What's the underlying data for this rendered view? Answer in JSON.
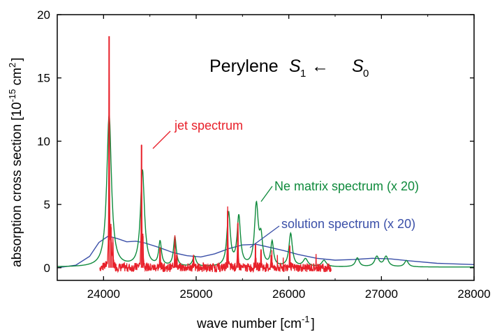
{
  "chart_data": {
    "type": "line",
    "title_main": "Perylene",
    "title_state_a": "S",
    "title_state_a_sub": "1",
    "title_arrow": "←",
    "title_state_b": "S",
    "title_state_b_sub": "0",
    "xlabel": "wave number [cm",
    "xlabel_sup": "-1",
    "xlabel_end": "]",
    "ylabel": "absorption cross section [10",
    "ylabel_sup": "-15",
    "ylabel_mid": " cm",
    "ylabel_sup2": "2",
    "ylabel_end": "]",
    "xlim": [
      23500,
      28000
    ],
    "ylim": [
      -1,
      20
    ],
    "xticks": [
      24000,
      25000,
      26000,
      27000,
      28000
    ],
    "yticks": [
      0,
      5,
      10,
      15,
      20
    ],
    "grid": false,
    "series": [
      {
        "name": "jet spectrum",
        "color": "#e8202a",
        "noise_range": [
          23960,
          26460
        ],
        "peaks": [
          {
            "x": 24060,
            "y": 18.3
          },
          {
            "x": 24080,
            "y": 3.2
          },
          {
            "x": 24100,
            "y": 2.0
          },
          {
            "x": 24410,
            "y": 9.7
          },
          {
            "x": 24425,
            "y": 2.5
          },
          {
            "x": 24610,
            "y": 1.6
          },
          {
            "x": 24770,
            "y": 2.4
          },
          {
            "x": 24790,
            "y": 1.0
          },
          {
            "x": 24970,
            "y": 0.9
          },
          {
            "x": 25340,
            "y": 4.5
          },
          {
            "x": 25450,
            "y": 3.5
          },
          {
            "x": 25640,
            "y": 1.8
          },
          {
            "x": 25700,
            "y": 1.4
          },
          {
            "x": 25810,
            "y": 1.0
          },
          {
            "x": 26010,
            "y": 1.7
          }
        ]
      },
      {
        "name": "Ne matrix spectrum (x 20)",
        "color": "#0f8a3c",
        "baseline": 0.05,
        "peaks": [
          {
            "x": 24060,
            "y": 12.0,
            "w": 30
          },
          {
            "x": 24420,
            "y": 7.6,
            "w": 26
          },
          {
            "x": 24610,
            "y": 1.9,
            "w": 18
          },
          {
            "x": 24770,
            "y": 2.3,
            "w": 18
          },
          {
            "x": 24980,
            "y": 0.8,
            "w": 22
          },
          {
            "x": 25350,
            "y": 4.2,
            "w": 22
          },
          {
            "x": 25460,
            "y": 3.9,
            "w": 22
          },
          {
            "x": 25650,
            "y": 4.8,
            "w": 24
          },
          {
            "x": 25700,
            "y": 2.0,
            "w": 20
          },
          {
            "x": 25820,
            "y": 1.9,
            "w": 18
          },
          {
            "x": 26020,
            "y": 2.6,
            "w": 22
          },
          {
            "x": 26180,
            "y": 0.6,
            "w": 30
          },
          {
            "x": 26380,
            "y": 0.5,
            "w": 30
          },
          {
            "x": 26740,
            "y": 0.7,
            "w": 25
          },
          {
            "x": 26950,
            "y": 0.8,
            "w": 28
          },
          {
            "x": 27050,
            "y": 0.8,
            "w": 28
          },
          {
            "x": 27270,
            "y": 0.5,
            "w": 25
          }
        ]
      },
      {
        "name": "solution spectrum (x 20)",
        "color": "#3a4fa8",
        "points": [
          [
            23500,
            0.0
          ],
          [
            23700,
            0.2
          ],
          [
            23850,
            0.9
          ],
          [
            23950,
            2.0
          ],
          [
            24050,
            2.5
          ],
          [
            24150,
            2.3
          ],
          [
            24250,
            2.05
          ],
          [
            24350,
            2.1
          ],
          [
            24450,
            1.95
          ],
          [
            24600,
            1.6
          ],
          [
            24750,
            1.2
          ],
          [
            24900,
            0.95
          ],
          [
            25050,
            0.85
          ],
          [
            25200,
            1.1
          ],
          [
            25350,
            1.5
          ],
          [
            25500,
            1.8
          ],
          [
            25650,
            1.85
          ],
          [
            25800,
            1.6
          ],
          [
            25950,
            1.35
          ],
          [
            26100,
            1.05
          ],
          [
            26300,
            0.75
          ],
          [
            26500,
            0.6
          ],
          [
            26700,
            0.65
          ],
          [
            26900,
            0.75
          ],
          [
            27100,
            0.7
          ],
          [
            27300,
            0.55
          ],
          [
            27600,
            0.35
          ],
          [
            28000,
            0.25
          ]
        ]
      }
    ],
    "annotations": [
      {
        "text": "jet spectrum",
        "color": "#e8202a"
      },
      {
        "text": "Ne matrix spectrum (x 20)",
        "color": "#0f8a3c"
      },
      {
        "text": "solution spectrum (x 20)",
        "color": "#3a4fa8"
      }
    ]
  }
}
